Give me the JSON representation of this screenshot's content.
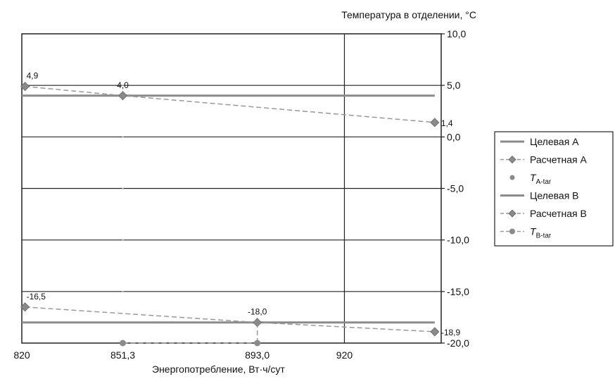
{
  "chart_data": {
    "type": "line",
    "ylabel": "Температура в отделении, °C",
    "xlabel": "Энергопотребление, Вт·ч/сут",
    "xlim": [
      820,
      950
    ],
    "ylim": [
      -20,
      10
    ],
    "x_ticks": [
      820,
      851.3,
      893.0,
      920
    ],
    "x_tick_labels": [
      "820",
      "851,3",
      "893,0",
      "920"
    ],
    "y_ticks": [
      10,
      5,
      0,
      -5,
      -10,
      -15,
      -20
    ],
    "y_tick_labels": [
      "10,0",
      "5,0",
      "0,0",
      "-5,0",
      "-10,0",
      "-15,0",
      "-20,0"
    ],
    "legend_position": "right",
    "series": [
      {
        "name": "Целевая А",
        "style": "solid",
        "color": "#8a8a8a",
        "points": [
          [
            820,
            4.0
          ],
          [
            948,
            4.0
          ]
        ]
      },
      {
        "name": "Расчетная А",
        "style": "dashed-diamond",
        "color": "#8a8a8a",
        "points": [
          [
            821,
            4.9
          ],
          [
            851.3,
            4.0
          ],
          [
            948,
            1.4
          ]
        ],
        "labels": [
          "4,9",
          "4,0",
          "1,4"
        ]
      },
      {
        "name": "T",
        "name_sub": "A-tar",
        "style": "point",
        "color": "#8a8a8a",
        "points": [
          [
            851.3,
            4.0
          ]
        ]
      },
      {
        "name": "Целевая В",
        "style": "solid",
        "color": "#8a8a8a",
        "points": [
          [
            820,
            -18.0
          ],
          [
            948,
            -18.0
          ]
        ]
      },
      {
        "name": "Расчетная В",
        "style": "dashed-diamond",
        "color": "#8a8a8a",
        "points": [
          [
            821,
            -16.5
          ],
          [
            893.0,
            -18.0
          ],
          [
            948,
            -18.9
          ]
        ],
        "labels": [
          "-16,5",
          "-18,0",
          "-18,9"
        ]
      },
      {
        "name": "T",
        "name_sub": "B-tar",
        "style": "dashed-circle",
        "color": "#8a8a8a",
        "points": [
          [
            851.3,
            -20.0
          ],
          [
            893.0,
            -20.0
          ],
          [
            893.0,
            -18.0
          ]
        ]
      }
    ]
  }
}
